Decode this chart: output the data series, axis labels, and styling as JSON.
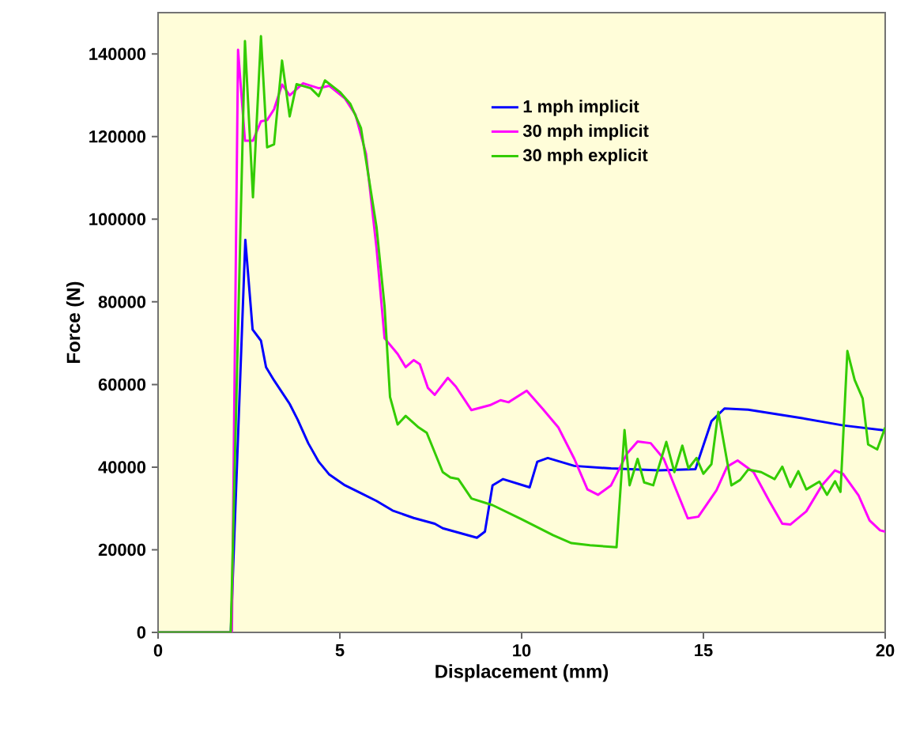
{
  "chart_data": {
    "type": "line",
    "xlabel": "Displacement (mm)",
    "ylabel": "Force (N)",
    "xlim": [
      0,
      20
    ],
    "ylim": [
      0,
      150000
    ],
    "xticks": [
      0,
      5,
      10,
      15,
      20
    ],
    "yticks": [
      0,
      20000,
      40000,
      60000,
      80000,
      100000,
      120000,
      140000
    ],
    "grid": false,
    "legend": "top right",
    "marker": "none",
    "line_style": "solid",
    "series": [
      {
        "name": "1 mph implicit",
        "color": "#0000ff",
        "x": [
          0,
          2.0,
          2.4,
          2.6,
          2.83,
          2.97,
          3.19,
          3.62,
          3.84,
          4.13,
          4.42,
          4.71,
          5.14,
          5.58,
          6.01,
          6.45,
          7.03,
          7.61,
          7.83,
          8.77,
          8.99,
          9.2,
          9.49,
          10.22,
          10.43,
          10.72,
          11.45,
          12.46,
          13.77,
          14.78,
          15.22,
          15.58,
          16.23,
          17.68,
          18.84,
          20
        ],
        "values": [
          0,
          0,
          95000,
          73300,
          70600,
          64200,
          61000,
          55300,
          51500,
          45800,
          41300,
          38200,
          35600,
          33700,
          31800,
          29500,
          27700,
          26300,
          25200,
          22900,
          24400,
          35600,
          37100,
          35100,
          41300,
          42200,
          40300,
          39700,
          39200,
          39500,
          51100,
          54200,
          53900,
          51900,
          50100,
          48900
        ]
      },
      {
        "name": "30 mph implicit",
        "color": "#ff00ff",
        "x": [
          0,
          2.03,
          2.2,
          2.39,
          2.61,
          2.83,
          3.0,
          3.19,
          3.41,
          3.62,
          3.99,
          4.42,
          4.71,
          5.14,
          5.43,
          5.72,
          6.01,
          6.23,
          6.59,
          6.81,
          7.03,
          7.2,
          7.42,
          7.61,
          7.97,
          8.19,
          8.62,
          9.13,
          9.42,
          9.64,
          10.14,
          10.58,
          11.01,
          11.45,
          11.81,
          12.1,
          12.46,
          12.9,
          13.19,
          13.55,
          13.91,
          14.2,
          14.57,
          14.86,
          15.36,
          15.65,
          15.94,
          16.38,
          16.81,
          17.17,
          17.39,
          17.83,
          18.26,
          18.62,
          18.84,
          19.27,
          19.57,
          19.86,
          20
        ],
        "values": [
          0,
          0,
          141000,
          119000,
          119000,
          123700,
          124000,
          126600,
          132600,
          130000,
          132900,
          131700,
          132300,
          129200,
          125300,
          115800,
          92900,
          71200,
          67400,
          64200,
          65900,
          64900,
          59200,
          57500,
          61600,
          59500,
          53800,
          55000,
          56200,
          55700,
          58500,
          54100,
          49600,
          42000,
          34600,
          33300,
          35600,
          43300,
          46200,
          45800,
          42000,
          35600,
          27600,
          28000,
          34400,
          40100,
          41600,
          38800,
          31800,
          26300,
          26100,
          29300,
          35600,
          39200,
          38400,
          33100,
          27100,
          24700,
          24400
        ]
      },
      {
        "name": "30 mph explicit",
        "color": "#33cc00",
        "x": [
          0,
          2.0,
          2.39,
          2.61,
          2.83,
          3.0,
          3.19,
          3.41,
          3.62,
          3.81,
          4.2,
          4.42,
          4.59,
          5.0,
          5.29,
          5.58,
          6.01,
          6.23,
          6.38,
          6.59,
          6.81,
          7.17,
          7.39,
          7.83,
          8.04,
          8.26,
          8.62,
          9.2,
          10.0,
          10.87,
          11.37,
          11.88,
          12.61,
          12.83,
          12.97,
          13.19,
          13.37,
          13.62,
          13.98,
          14.2,
          14.42,
          14.59,
          14.81,
          15.0,
          15.22,
          15.41,
          15.77,
          16.01,
          16.23,
          16.59,
          16.96,
          17.17,
          17.39,
          17.61,
          17.83,
          18.19,
          18.4,
          18.62,
          18.77,
          18.96,
          19.16,
          19.38,
          19.53,
          19.78,
          20
        ],
        "values": [
          0,
          0,
          143100,
          105300,
          144300,
          117400,
          118100,
          138400,
          124900,
          132700,
          131700,
          129800,
          133600,
          130800,
          127900,
          122100,
          98000,
          78900,
          57000,
          50300,
          52400,
          49600,
          48300,
          38800,
          37500,
          37100,
          32400,
          30800,
          27400,
          23500,
          21600,
          21100,
          20600,
          49000,
          35600,
          42000,
          36300,
          35600,
          46100,
          38800,
          45200,
          39700,
          42200,
          38400,
          40700,
          53400,
          35600,
          36900,
          39400,
          38800,
          37100,
          40100,
          35200,
          39000,
          34600,
          36500,
          33300,
          36600,
          34000,
          68100,
          61100,
          56600,
          45500,
          44300,
          49600
        ]
      }
    ]
  }
}
